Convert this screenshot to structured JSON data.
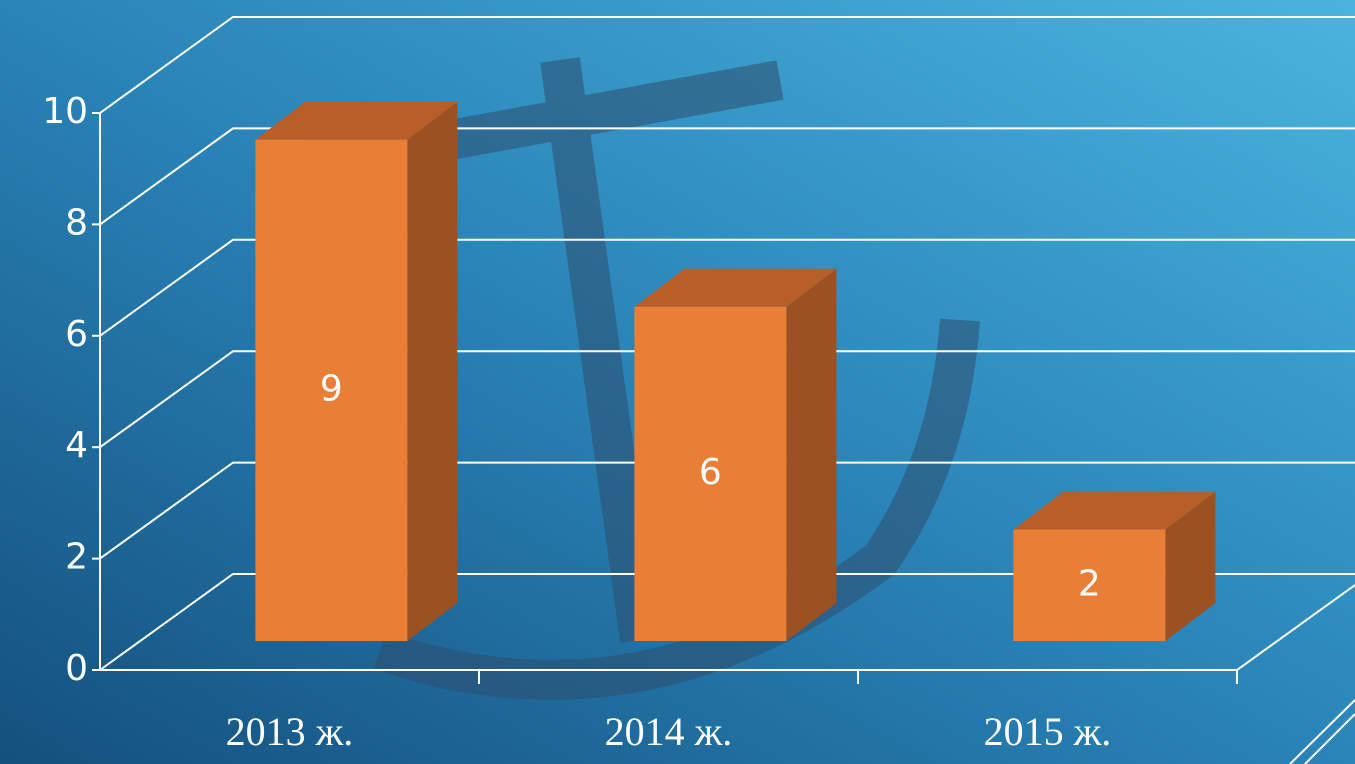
{
  "chart_data": {
    "type": "bar3d",
    "categories": [
      "2013 ж.",
      "2014 ж.",
      "2015 ж."
    ],
    "values": [
      9,
      6,
      2
    ],
    "color": "#e97e37",
    "ylim": [
      0,
      10
    ],
    "yticks": [
      0,
      2,
      4,
      6,
      8,
      10
    ],
    "grid": true
  }
}
